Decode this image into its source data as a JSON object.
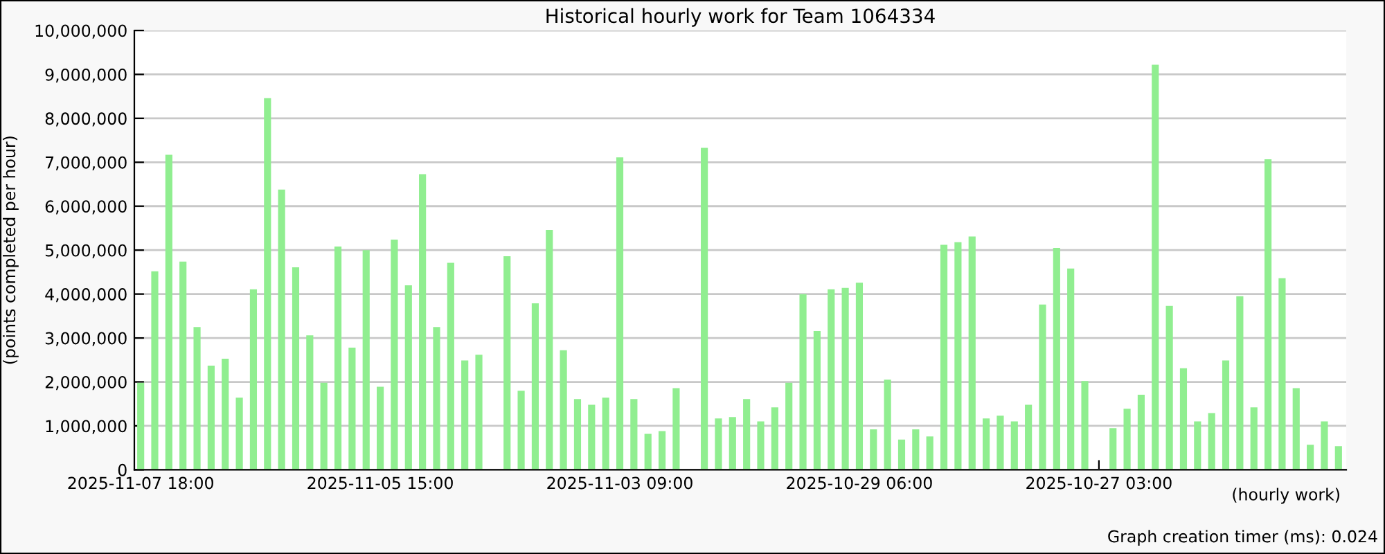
{
  "chart_data": {
    "type": "bar",
    "title": "Historical hourly work for Team 1064334",
    "ylabel": "(points completed per hour)",
    "xlabel": "(hourly work)",
    "annotations": [
      "Graph creation timer (ms): 0.024"
    ],
    "categories": [
      "2025-11-07 18:00",
      null,
      null,
      null,
      null,
      null,
      null,
      null,
      null,
      null,
      null,
      null,
      null,
      null,
      null,
      null,
      null,
      "2025-11-05 15:00",
      null,
      null,
      null,
      null,
      null,
      null,
      null,
      null,
      null,
      null,
      null,
      null,
      null,
      null,
      null,
      null,
      "2025-11-03 09:00",
      null,
      null,
      null,
      null,
      null,
      null,
      null,
      null,
      null,
      null,
      null,
      null,
      null,
      null,
      null,
      null,
      "2025-10-29 06:00",
      null,
      null,
      null,
      null,
      null,
      null,
      null,
      null,
      null,
      null,
      null,
      null,
      null,
      null,
      null,
      null,
      "2025-10-27 03:00",
      null,
      null,
      null,
      null,
      null,
      null,
      null,
      null,
      null,
      null,
      null,
      null,
      null,
      null,
      null,
      null,
      null
    ],
    "values": [
      1980000,
      4520000,
      7170000,
      4740000,
      3250000,
      2370000,
      2530000,
      1640000,
      4110000,
      8460000,
      6380000,
      4610000,
      3060000,
      1980000,
      5080000,
      2780000,
      5000000,
      1890000,
      5240000,
      4200000,
      6730000,
      3250000,
      4710000,
      2490000,
      2620000,
      null,
      4860000,
      1800000,
      3790000,
      5460000,
      2720000,
      1610000,
      1480000,
      1640000,
      7110000,
      1610000,
      820000,
      880000,
      1860000,
      null,
      7330000,
      1170000,
      1200000,
      1610000,
      1100000,
      1420000,
      1980000,
      4000000,
      3160000,
      4110000,
      4140000,
      4260000,
      920000,
      2050000,
      690000,
      920000,
      760000,
      5120000,
      5180000,
      5310000,
      1170000,
      1230000,
      1100000,
      1480000,
      3760000,
      5050000,
      4580000,
      2020000,
      null,
      950000,
      1390000,
      1710000,
      9220000,
      3730000,
      2310000,
      1100000,
      1290000,
      2490000,
      3950000,
      1420000,
      7070000,
      4360000,
      1860000,
      570000,
      1100000,
      540000
    ],
    "color": "#90ee90",
    "ylim": [
      0,
      10000000
    ],
    "yticks": [
      0,
      {
        "value": 1000000,
        "label": "1,000,000"
      },
      {
        "value": 2000000,
        "label": "2,000,000"
      },
      {
        "value": 3000000,
        "label": "3,000,000"
      },
      {
        "value": 4000000,
        "label": "4,000,000"
      },
      {
        "value": 5000000,
        "label": "5,000,000"
      },
      {
        "value": 6000000,
        "label": "6,000,000"
      },
      {
        "value": 7000000,
        "label": "7,000,000"
      },
      {
        "value": 8000000,
        "label": "8,000,000"
      },
      {
        "value": 9000000,
        "label": "9,000,000"
      },
      {
        "value": 10000000,
        "label": "10,000,000"
      }
    ],
    "grid": "y",
    "legend": false
  }
}
